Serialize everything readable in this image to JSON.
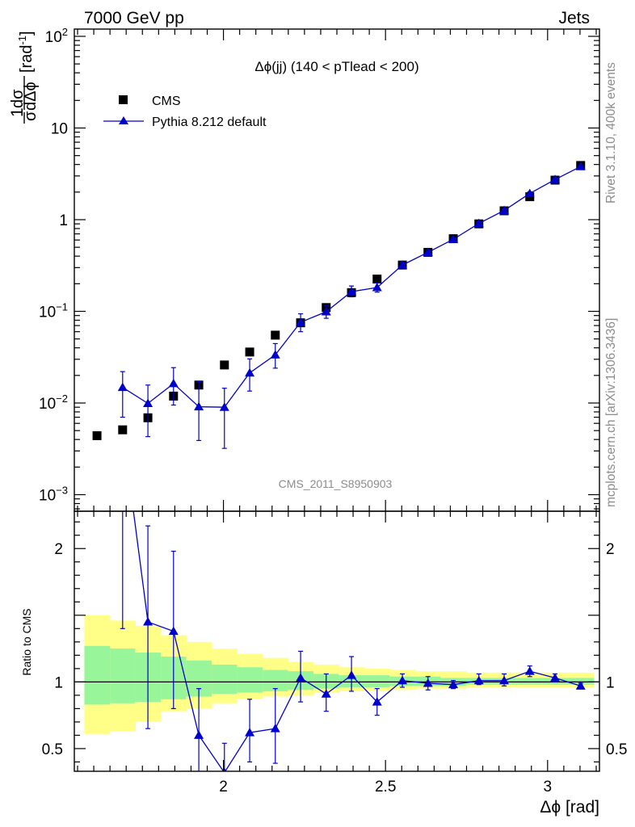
{
  "header": {
    "left": "7000 GeV pp",
    "right": "Jets"
  },
  "side_labels": {
    "rivet": "Rivet 3.1.10,  400k events",
    "mcplots": "mcplots.cern.ch [arXiv:1306.3436]"
  },
  "watermark": "CMS_2011_S8950903",
  "chart_data": [
    {
      "type": "scatter",
      "panel": "main",
      "title": "Δϕ(jj) (140 < pTlead <  200)",
      "xlabel": "Δϕ [rad]",
      "ylabel": "1/σ dσ/dΔϕ [rad⁻¹]",
      "ylabel_parts": {
        "frac_num": "1",
        "frac_den": "σ",
        "frac2_num": "dσ",
        "frac2_den": "dΔϕ",
        "unit": "[rad",
        "unit_exp": "-1",
        "unit_close": "]"
      },
      "yscale": "log",
      "xlim": [
        1.54,
        3.16
      ],
      "ylim": [
        0.00066,
        120
      ],
      "y_ticks": [
        {
          "value": 0.001,
          "base": "10",
          "exp": "−3"
        },
        {
          "value": 0.01,
          "base": "10",
          "exp": "−2"
        },
        {
          "value": 0.1,
          "base": "10",
          "exp": "−1"
        },
        {
          "value": 1,
          "label": "1"
        },
        {
          "value": 10,
          "label": "10"
        },
        {
          "value": 100,
          "base": "10",
          "exp": "2"
        }
      ],
      "legend_position": "top-left",
      "colors": {
        "cms": "#000000",
        "pythia": "#0000cc"
      },
      "series": [
        {
          "name": "CMS",
          "marker": "square",
          "x": [
            1.61,
            1.689,
            1.767,
            1.846,
            1.924,
            2.003,
            2.081,
            2.16,
            2.238,
            2.317,
            2.395,
            2.474,
            2.552,
            2.631,
            2.709,
            2.788,
            2.866,
            2.945,
            3.023,
            3.102
          ],
          "y": [
            0.0044,
            0.0051,
            0.0069,
            0.0119,
            0.0157,
            0.026,
            0.036,
            0.055,
            0.075,
            0.11,
            0.16,
            0.225,
            0.32,
            0.44,
            0.62,
            0.9,
            1.25,
            1.78,
            2.7,
            3.9
          ]
        },
        {
          "name": "Pythia 8.212 default",
          "marker": "triangle",
          "x": [
            1.689,
            1.767,
            1.846,
            1.924,
            2.003,
            2.081,
            2.16,
            2.238,
            2.317,
            2.395,
            2.474,
            2.552,
            2.631,
            2.709,
            2.788,
            2.866,
            2.945,
            3.023,
            3.102
          ],
          "y": [
            0.0148,
            0.0099,
            0.0163,
            0.0091,
            0.009,
            0.0213,
            0.0335,
            0.076,
            0.099,
            0.164,
            0.182,
            0.32,
            0.44,
            0.61,
            0.91,
            1.26,
            1.93,
            2.74,
            3.8
          ],
          "err_low": [
            0.0078,
            0.0056,
            0.0068,
            0.0052,
            0.0058,
            0.0078,
            0.0095,
            0.016,
            0.015,
            0.02,
            0.02,
            0.02,
            0.025,
            0.02,
            0.03,
            0.05,
            0.07,
            0.08,
            0.1
          ],
          "err_high": [
            0.0072,
            0.0058,
            0.008,
            0.008,
            0.0055,
            0.009,
            0.011,
            0.018,
            0.017,
            0.025,
            0.022,
            0.02,
            0.025,
            0.02,
            0.03,
            0.05,
            0.08,
            0.08,
            0.1
          ]
        }
      ]
    },
    {
      "type": "line",
      "panel": "ratio",
      "ylabel": "Ratio to CMS",
      "xlabel": "Δϕ [rad]",
      "xlim": [
        1.54,
        3.16
      ],
      "ylim": [
        0.33,
        2.28
      ],
      "x_ticks": [
        {
          "value": 2,
          "label": "2"
        },
        {
          "value": 2.5,
          "label": "2.5"
        },
        {
          "value": 3,
          "label": "3"
        }
      ],
      "y_ticks": [
        {
          "value": 0.5,
          "label": "0.5"
        },
        {
          "value": 1,
          "label": "1"
        },
        {
          "value": 2,
          "label": "2"
        }
      ],
      "reference_line": 1,
      "bands": {
        "bin_edges": [
          1.571,
          1.65,
          1.728,
          1.807,
          1.885,
          1.964,
          2.042,
          2.121,
          2.199,
          2.278,
          2.356,
          2.435,
          2.513,
          2.592,
          2.67,
          2.749,
          2.827,
          2.906,
          2.984,
          3.063,
          3.142
        ],
        "outer_low": [
          0.61,
          0.63,
          0.7,
          0.78,
          0.8,
          0.84,
          0.87,
          0.89,
          0.9,
          0.92,
          0.93,
          0.93,
          0.94,
          0.95,
          0.95,
          0.96,
          0.96,
          0.96,
          0.96,
          0.96
        ],
        "outer_high": [
          1.5,
          1.46,
          1.42,
          1.35,
          1.3,
          1.25,
          1.21,
          1.18,
          1.15,
          1.13,
          1.11,
          1.1,
          1.09,
          1.08,
          1.08,
          1.07,
          1.07,
          1.07,
          1.07,
          1.07
        ],
        "inner_low": [
          0.83,
          0.84,
          0.85,
          0.87,
          0.89,
          0.91,
          0.92,
          0.93,
          0.94,
          0.95,
          0.96,
          0.96,
          0.97,
          0.97,
          0.97,
          0.98,
          0.98,
          0.98,
          0.98,
          0.98
        ],
        "inner_high": [
          1.27,
          1.25,
          1.22,
          1.19,
          1.16,
          1.13,
          1.11,
          1.09,
          1.08,
          1.06,
          1.05,
          1.05,
          1.04,
          1.04,
          1.03,
          1.03,
          1.03,
          1.03,
          1.03,
          1.03
        ],
        "colors": {
          "outer": "#ffff88",
          "inner": "#99f599"
        }
      },
      "series": [
        {
          "name": "Pythia 8.212 default",
          "marker": "triangle",
          "x": [
            1.689,
            1.767,
            1.846,
            1.924,
            2.003,
            2.081,
            2.16,
            2.238,
            2.317,
            2.395,
            2.474,
            2.552,
            2.631,
            2.709,
            2.788,
            2.866,
            2.945,
            3.023,
            3.102
          ],
          "y": [
            2.9,
            1.45,
            1.38,
            0.6,
            0.32,
            0.62,
            0.65,
            1.03,
            0.91,
            1.05,
            0.85,
            1.01,
            0.99,
            0.98,
            1.01,
            1.01,
            1.08,
            1.03,
            0.97
          ],
          "err_low": [
            1.5,
            0.8,
            0.58,
            0.3,
            0.22,
            0.22,
            0.26,
            0.18,
            0.13,
            0.12,
            0.1,
            0.05,
            0.05,
            0.03,
            0.03,
            0.04,
            0.04,
            0.03,
            0.02
          ],
          "err_high": [
            1.5,
            0.72,
            0.6,
            0.35,
            0.22,
            0.25,
            0.3,
            0.2,
            0.15,
            0.14,
            0.1,
            0.05,
            0.05,
            0.03,
            0.05,
            0.05,
            0.04,
            0.03,
            0.02
          ]
        }
      ]
    }
  ]
}
